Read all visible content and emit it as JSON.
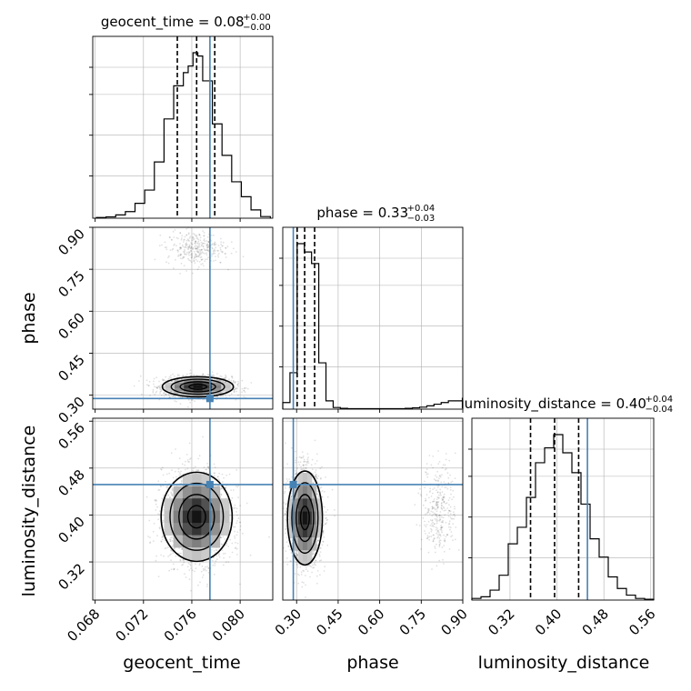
{
  "chart_data": {
    "type": "corner",
    "parameters": [
      "geocent_time",
      "phase",
      "luminosity_distance"
    ],
    "axis_labels": [
      "geocent_time",
      "phase",
      "luminosity_distance"
    ],
    "ranges": {
      "geocent_time": [
        0.0678,
        0.0827
      ],
      "phase": [
        0.25,
        0.9
      ],
      "luminosity_distance": [
        0.255,
        0.565
      ]
    },
    "ticks": {
      "geocent_time": {
        "values": [
          0.068,
          0.072,
          0.076,
          0.08
        ],
        "labels": [
          "0.068",
          "0.072",
          "0.076",
          "0.080"
        ]
      },
      "phase_x": {
        "values": [
          0.3,
          0.45,
          0.6,
          0.75,
          0.9
        ],
        "labels": [
          "0.30",
          "0.45",
          "0.60",
          "0.75",
          "0.90"
        ]
      },
      "phase_y": {
        "values": [
          0.3,
          0.45,
          0.6,
          0.75,
          0.9
        ],
        "labels": [
          "0.30",
          "0.45",
          "0.60",
          "0.75",
          "0.90"
        ]
      },
      "luminosity_distance": {
        "values": [
          0.32,
          0.4,
          0.48,
          0.56
        ],
        "labels": [
          "0.32",
          "0.40",
          "0.48",
          "0.56"
        ]
      }
    },
    "titles": [
      {
        "param": "geocent_time",
        "label": "geocent_time = ",
        "median": "0.08",
        "plus": "+0.00",
        "minus": "−0.00"
      },
      {
        "param": "phase",
        "label": "phase = ",
        "median": "0.33",
        "plus": "+0.04",
        "minus": "−0.03"
      },
      {
        "param": "luminosity_distance",
        "label": "luminosity_distance = ",
        "median": "0.40",
        "plus": "+0.04",
        "minus": "−0.04"
      }
    ],
    "truths": {
      "geocent_time": 0.0775,
      "phase": 0.288,
      "luminosity_distance": 0.452
    },
    "quantiles": {
      "geocent_time": [
        0.0748,
        0.0764,
        0.0779
      ],
      "phase": [
        0.302,
        0.329,
        0.365
      ],
      "luminosity_distance": [
        0.355,
        0.396,
        0.437
      ]
    },
    "histograms": {
      "geocent_time": {
        "edges": [
          0.0681,
          0.0689,
          0.0697,
          0.0705,
          0.0713,
          0.0721,
          0.0729,
          0.0737,
          0.0745,
          0.0753,
          0.0757,
          0.0761,
          0.0765,
          0.0769,
          0.0777,
          0.0785,
          0.0793,
          0.0801,
          0.0809,
          0.0817,
          0.0825
        ],
        "counts": [
          0.004,
          0.008,
          0.02,
          0.04,
          0.09,
          0.17,
          0.34,
          0.6,
          0.8,
          0.88,
          0.92,
          1.0,
          0.98,
          0.83,
          0.57,
          0.38,
          0.22,
          0.13,
          0.05,
          0.01
        ]
      },
      "phase": {
        "edges": [
          0.25,
          0.276,
          0.302,
          0.328,
          0.354,
          0.38,
          0.406,
          0.432,
          0.458,
          0.484,
          0.51,
          0.536,
          0.562,
          0.588,
          0.614,
          0.64,
          0.666,
          0.692,
          0.718,
          0.744,
          0.77,
          0.796,
          0.822,
          0.848,
          0.874,
          0.9
        ],
        "counts": [
          0.04,
          0.22,
          1.0,
          0.95,
          0.88,
          0.28,
          0.05,
          0.01,
          0.005,
          0.003,
          0.003,
          0.003,
          0.003,
          0.003,
          0.003,
          0.003,
          0.003,
          0.005,
          0.008,
          0.012,
          0.02,
          0.03,
          0.04,
          0.05,
          0.05
        ]
      },
      "luminosity_distance": {
        "edges": [
          0.255,
          0.2705,
          0.286,
          0.3015,
          0.317,
          0.3325,
          0.348,
          0.3635,
          0.379,
          0.3945,
          0.41,
          0.4255,
          0.441,
          0.4565,
          0.472,
          0.4875,
          0.503,
          0.5185,
          0.534,
          0.5495,
          0.565
        ],
        "counts": [
          0.01,
          0.02,
          0.06,
          0.15,
          0.34,
          0.44,
          0.62,
          0.83,
          0.92,
          1.0,
          0.89,
          0.77,
          0.58,
          0.37,
          0.26,
          0.14,
          0.07,
          0.03,
          0.01,
          0.005
        ]
      }
    },
    "scatter": {
      "phase_vs_geocent_time": {
        "clusters": [
          {
            "x_mean": 0.0765,
            "x_sd": 0.0014,
            "y_mean": 0.33,
            "y_sd": 0.018,
            "weight": 0.85
          },
          {
            "x_mean": 0.0763,
            "x_sd": 0.0012,
            "y_mean": 0.825,
            "y_sd": 0.03,
            "weight": 0.15
          }
        ]
      },
      "luminosity_distance_vs_geocent_time": {
        "clusters": [
          {
            "x_mean": 0.0764,
            "x_sd": 0.0014,
            "y_mean": 0.397,
            "y_sd": 0.038,
            "weight": 1.0
          }
        ]
      },
      "luminosity_distance_vs_phase": {
        "clusters": [
          {
            "x_mean": 0.33,
            "x_sd": 0.03,
            "y_mean": 0.395,
            "y_sd": 0.04,
            "weight": 0.85
          },
          {
            "x_mean": 0.815,
            "x_sd": 0.03,
            "y_mean": 0.41,
            "y_sd": 0.04,
            "weight": 0.15
          }
        ]
      }
    },
    "grid": true,
    "truth_color": "#4682b4",
    "line_color": "#000000",
    "grid_color": "#b0b0b0"
  }
}
